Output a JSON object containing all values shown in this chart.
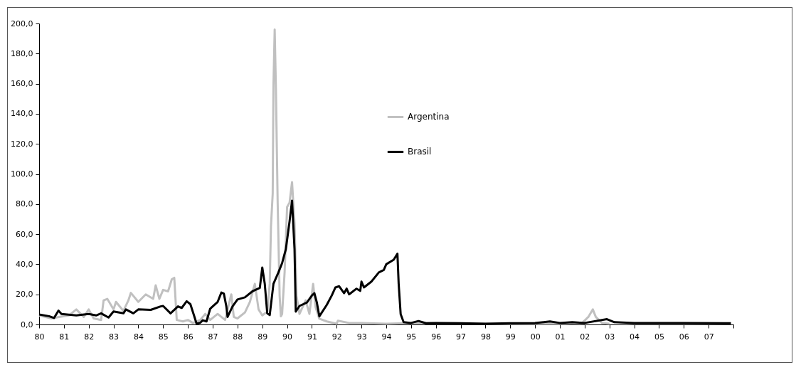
{
  "chart_data": {
    "type": "line",
    "xlim": [
      1980,
      2008
    ],
    "ylim": [
      0,
      200
    ],
    "xticks": [
      {
        "value": 1980,
        "label": "80"
      },
      {
        "value": 1981,
        "label": "81"
      },
      {
        "value": 1982,
        "label": "82"
      },
      {
        "value": 1983,
        "label": "83"
      },
      {
        "value": 1984,
        "label": "84"
      },
      {
        "value": 1985,
        "label": "85"
      },
      {
        "value": 1986,
        "label": "86"
      },
      {
        "value": 1987,
        "label": "87"
      },
      {
        "value": 1988,
        "label": "88"
      },
      {
        "value": 1989,
        "label": "89"
      },
      {
        "value": 1990,
        "label": "90"
      },
      {
        "value": 1991,
        "label": "91"
      },
      {
        "value": 1992,
        "label": "92"
      },
      {
        "value": 1993,
        "label": "93"
      },
      {
        "value": 1994,
        "label": "94"
      },
      {
        "value": 1995,
        "label": "95"
      },
      {
        "value": 1996,
        "label": "96"
      },
      {
        "value": 1997,
        "label": "97"
      },
      {
        "value": 1998,
        "label": "98"
      },
      {
        "value": 1999,
        "label": "99"
      },
      {
        "value": 2000,
        "label": "00"
      },
      {
        "value": 2001,
        "label": "01"
      },
      {
        "value": 2002,
        "label": "02"
      },
      {
        "value": 2003,
        "label": "03"
      },
      {
        "value": 2004,
        "label": "04"
      },
      {
        "value": 2005,
        "label": "05"
      },
      {
        "value": 2006,
        "label": "06"
      },
      {
        "value": 2007,
        "label": "07"
      },
      {
        "value": 2008,
        "label": null
      }
    ],
    "yticks": [
      {
        "value": 0,
        "label": "0,0"
      },
      {
        "value": 20,
        "label": "20,0"
      },
      {
        "value": 40,
        "label": "40,0"
      },
      {
        "value": 60,
        "label": "60,0"
      },
      {
        "value": 80,
        "label": "80,0"
      },
      {
        "value": 100,
        "label": "100,0"
      },
      {
        "value": 120,
        "label": "120,0"
      },
      {
        "value": 140,
        "label": "140,0"
      },
      {
        "value": 160,
        "label": "160,0"
      },
      {
        "value": 180,
        "label": "180,0"
      },
      {
        "value": 200,
        "label": "200,0"
      }
    ],
    "grid": false,
    "legend": "top",
    "line_style": "solid",
    "series": [
      {
        "name": "Argentina",
        "color": "#c0c0c0",
        "x": [
          1980.0,
          1980.5,
          1980.8,
          1981.2,
          1981.5,
          1981.8,
          1982.0,
          1982.2,
          1982.5,
          1982.6,
          1982.75,
          1983.0,
          1983.1,
          1983.4,
          1983.6,
          1983.7,
          1984.0,
          1984.3,
          1984.6,
          1984.7,
          1984.85,
          1985.0,
          1985.2,
          1985.35,
          1985.45,
          1985.55,
          1985.8,
          1986.0,
          1986.2,
          1986.5,
          1986.7,
          1986.9,
          1987.2,
          1987.5,
          1987.75,
          1987.85,
          1988.0,
          1988.3,
          1988.5,
          1988.7,
          1988.85,
          1989.0,
          1989.2,
          1989.3,
          1989.35,
          1989.42,
          1989.45,
          1989.5,
          1989.55,
          1989.62,
          1989.7,
          1989.75,
          1989.8,
          1989.9,
          1990.0,
          1990.1,
          1990.2,
          1990.3,
          1990.38,
          1990.5,
          1990.75,
          1990.9,
          1991.05,
          1991.15,
          1991.3,
          1991.6,
          1992.0,
          1992.05,
          1992.5,
          1993.0,
          1994.0,
          1995.0,
          1999.0,
          2000.0,
          2001.0,
          2001.9,
          2002.15,
          2002.33,
          2002.45,
          2002.7,
          2003.0
        ],
        "values": [
          6,
          4,
          5,
          6,
          10,
          5,
          10,
          4,
          3,
          16,
          17,
          10,
          15,
          9,
          16,
          21,
          15,
          20,
          17,
          26,
          17,
          23,
          22,
          30,
          31,
          3,
          2,
          3,
          1,
          3,
          7,
          3,
          7,
          3,
          20,
          5,
          4,
          8,
          15,
          27,
          10,
          6,
          8.5,
          27,
          65,
          87,
          158,
          196,
          156,
          81,
          19,
          5.4,
          7,
          34.6,
          78,
          81,
          94.6,
          67,
          19,
          7,
          16,
          7,
          27,
          11.5,
          3.8,
          2,
          0.5,
          2.5,
          1,
          1,
          0.5,
          1,
          0.5,
          0.5,
          0.5,
          1,
          5,
          10,
          5,
          1,
          0.5
        ]
      },
      {
        "name": "Brasil",
        "color": "#000000",
        "x": [
          1980.0,
          1980.4,
          1980.6,
          1980.78,
          1980.9,
          1981.5,
          1982.0,
          1982.3,
          1982.5,
          1982.8,
          1983.0,
          1983.4,
          1983.5,
          1983.8,
          1984.0,
          1984.5,
          1984.9,
          1985.0,
          1985.3,
          1985.6,
          1985.75,
          1985.95,
          1986.1,
          1986.25,
          1986.35,
          1986.5,
          1986.6,
          1986.75,
          1986.9,
          1987.0,
          1987.2,
          1987.35,
          1987.45,
          1987.55,
          1987.6,
          1987.8,
          1988.0,
          1988.3,
          1988.6,
          1988.9,
          1989.0,
          1989.1,
          1989.2,
          1989.3,
          1989.45,
          1989.65,
          1989.8,
          1989.95,
          1990.1,
          1990.2,
          1990.3,
          1990.35,
          1990.5,
          1990.8,
          1991.0,
          1991.1,
          1991.2,
          1991.3,
          1991.6,
          1991.8,
          1991.95,
          1992.1,
          1992.3,
          1992.4,
          1992.5,
          1992.8,
          1992.95,
          1993.0,
          1993.1,
          1993.4,
          1993.7,
          1993.9,
          1994.0,
          1994.3,
          1994.45,
          1994.5,
          1994.58,
          1994.7,
          1995.0,
          1995.3,
          1995.6,
          1996.0,
          1997.0,
          1998.0,
          1999.0,
          2000.0,
          2000.6,
          2001.0,
          2001.5,
          2002.0,
          2002.9,
          2003.2,
          2004.0,
          2005.0,
          2006.0,
          2007.9
        ],
        "values": [
          6.6,
          5.5,
          4.3,
          9.2,
          7,
          6,
          7,
          6,
          7.4,
          4.6,
          8.6,
          7.4,
          10,
          7.4,
          10,
          9.7,
          12,
          12.3,
          7.4,
          12,
          11,
          15.4,
          13.5,
          5.8,
          0.5,
          1.2,
          2.8,
          2,
          10.5,
          12,
          15,
          21.2,
          20.5,
          12,
          5,
          12,
          16.6,
          18,
          22,
          24.3,
          37.8,
          27,
          7.4,
          6.2,
          27,
          34.6,
          40.8,
          50,
          68.5,
          82.3,
          50,
          8.5,
          12.3,
          14.6,
          19.2,
          20.8,
          14.6,
          5.4,
          13,
          19.2,
          24.6,
          25.4,
          20.8,
          23.8,
          20,
          23.8,
          22.3,
          28.5,
          24.6,
          28.5,
          34.6,
          36.2,
          40,
          43,
          47,
          27,
          6.9,
          1.5,
          1,
          2.3,
          0.8,
          1,
          0.8,
          0.5,
          0.8,
          1,
          2,
          1,
          1.5,
          1,
          3.5,
          1.5,
          1,
          1,
          1,
          0.8
        ]
      }
    ]
  }
}
